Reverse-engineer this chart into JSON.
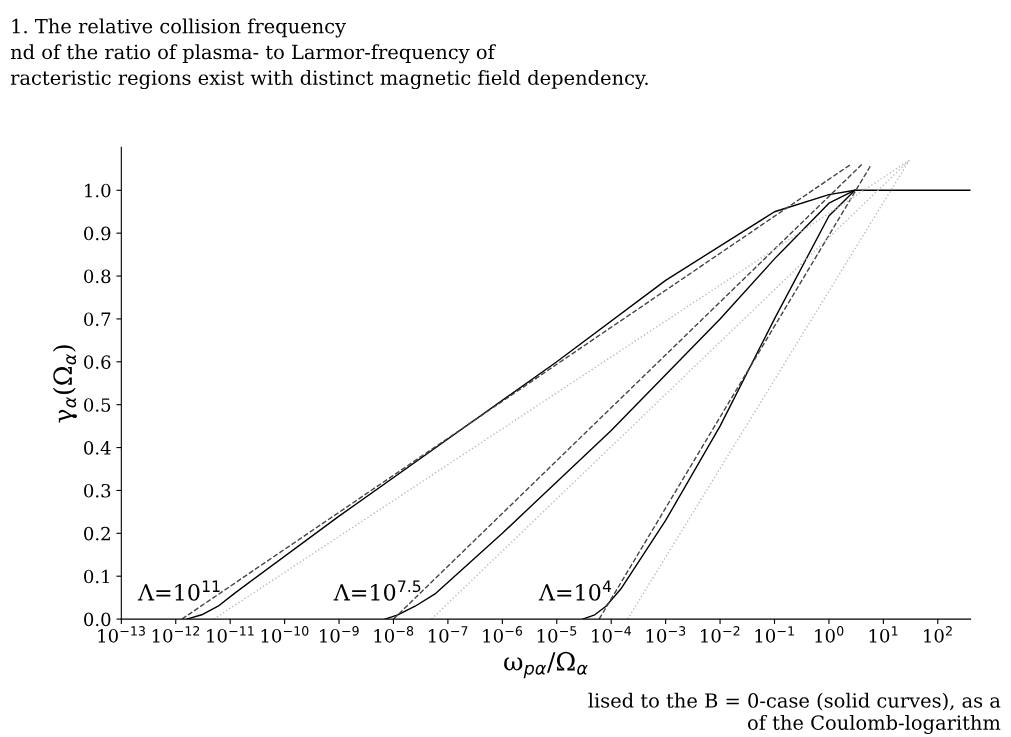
{
  "chart_data": {
    "type": "line",
    "xlabel": "ω$_{pα}$/Ω$_{α}$",
    "ylabel": "γ$_{α}$(Ω$_{α}$)",
    "log": "x",
    "grid": false,
    "legend": false,
    "xlim": [
      1e-13,
      400
    ],
    "ylim": [
      0,
      1.1
    ],
    "xticks": [
      {
        "value": 1e-13,
        "label": "10$^{−13}$"
      },
      {
        "value": 1e-12,
        "label": "10$^{−12}$"
      },
      {
        "value": 1e-11,
        "label": "10$^{−11}$"
      },
      {
        "value": 1e-10,
        "label": "10$^{−10}$"
      },
      {
        "value": 1e-09,
        "label": "10$^{−9}$"
      },
      {
        "value": 1e-08,
        "label": "10$^{−8}$"
      },
      {
        "value": 1e-07,
        "label": "10$^{−7}$"
      },
      {
        "value": 1e-06,
        "label": "10$^{−6}$"
      },
      {
        "value": 1e-05,
        "label": "10$^{−5}$"
      },
      {
        "value": 0.0001,
        "label": "10$^{−4}$"
      },
      {
        "value": 0.001,
        "label": "10$^{−3}$"
      },
      {
        "value": 0.01,
        "label": "10$^{−2}$"
      },
      {
        "value": 0.1,
        "label": "10$^{−1}$"
      },
      {
        "value": 1,
        "label": "10$^{0}$"
      },
      {
        "value": 10,
        "label": "10$^{1}$"
      },
      {
        "value": 100,
        "label": "10$^{2}$"
      }
    ],
    "yticks": [
      {
        "value": 0,
        "label": "0.0"
      },
      {
        "value": 0.1,
        "label": "0.1"
      },
      {
        "value": 0.2,
        "label": "0.2"
      },
      {
        "value": 0.3,
        "label": "0.3"
      },
      {
        "value": 0.4,
        "label": "0.4"
      },
      {
        "value": 0.5,
        "label": "0.5"
      },
      {
        "value": 0.6,
        "label": "0.6"
      },
      {
        "value": 0.7,
        "label": "0.7"
      },
      {
        "value": 0.8,
        "label": "0.8"
      },
      {
        "value": 0.9,
        "label": "0.9"
      },
      {
        "value": 1.0,
        "label": "1.0"
      }
    ],
    "series": [
      {
        "name": "Λ=10$^{11}$",
        "color": "#000000",
        "line_style": "solid",
        "x": [
          1.6e-12,
          3e-12,
          6e-12,
          1.2e-11,
          1e-09,
          1e-07,
          1e-05,
          0.001,
          0.1,
          1,
          3,
          400
        ],
        "values": [
          0,
          0.01,
          0.03,
          0.06,
          0.24,
          0.42,
          0.6,
          0.79,
          0.95,
          0.99,
          1.0,
          1.0
        ]
      },
      {
        "name": "Λ=10$^{7.5}$",
        "color": "#000000",
        "line_style": "solid",
        "x": [
          7e-09,
          1.2e-08,
          2.5e-08,
          6e-08,
          1e-06,
          0.0001,
          0.01,
          0.1,
          1,
          3
        ],
        "values": [
          0,
          0.01,
          0.03,
          0.06,
          0.2,
          0.44,
          0.7,
          0.84,
          0.97,
          1.0
        ]
      },
      {
        "name": "Λ=10$^{4}$",
        "color": "#000000",
        "line_style": "solid",
        "x": [
          3e-05,
          5e-05,
          8e-05,
          0.00015,
          0.001,
          0.01,
          0.1,
          1,
          3
        ],
        "values": [
          0,
          0.01,
          0.03,
          0.07,
          0.23,
          0.45,
          0.7,
          0.94,
          1.0
        ]
      },
      {
        "color": "#444444",
        "line_style": "dashed",
        "x": [
          1.3e-12,
          2.5
        ],
        "values": [
          0,
          1.06
        ]
      },
      {
        "color": "#444444",
        "line_style": "dashed",
        "x": [
          1e-08,
          4
        ],
        "values": [
          0,
          1.06
        ]
      },
      {
        "color": "#444444",
        "line_style": "dashed",
        "x": [
          6e-05,
          6
        ],
        "values": [
          0,
          1.06
        ]
      },
      {
        "color": "#bbbbbb",
        "line_style": "dotted",
        "x": [
          5e-12,
          30
        ],
        "values": [
          0,
          1.07
        ]
      },
      {
        "color": "#bbbbbb",
        "line_style": "dotted",
        "x": [
          5e-08,
          30
        ],
        "values": [
          0,
          1.07
        ]
      },
      {
        "color": "#bbbbbb",
        "line_style": "dotted",
        "x": [
          0.0002,
          30
        ],
        "values": [
          0,
          1.07
        ]
      }
    ],
    "annotations": [
      "1. The relative collision frequency",
      "nd of the ratio of plasma- to Larmor-frequency of",
      "racteristic regions exist with distinct magnetic field dependency.",
      "lised to the B = 0-case (solid curves), as a",
      "of the Coulomb-logarithm"
    ]
  }
}
